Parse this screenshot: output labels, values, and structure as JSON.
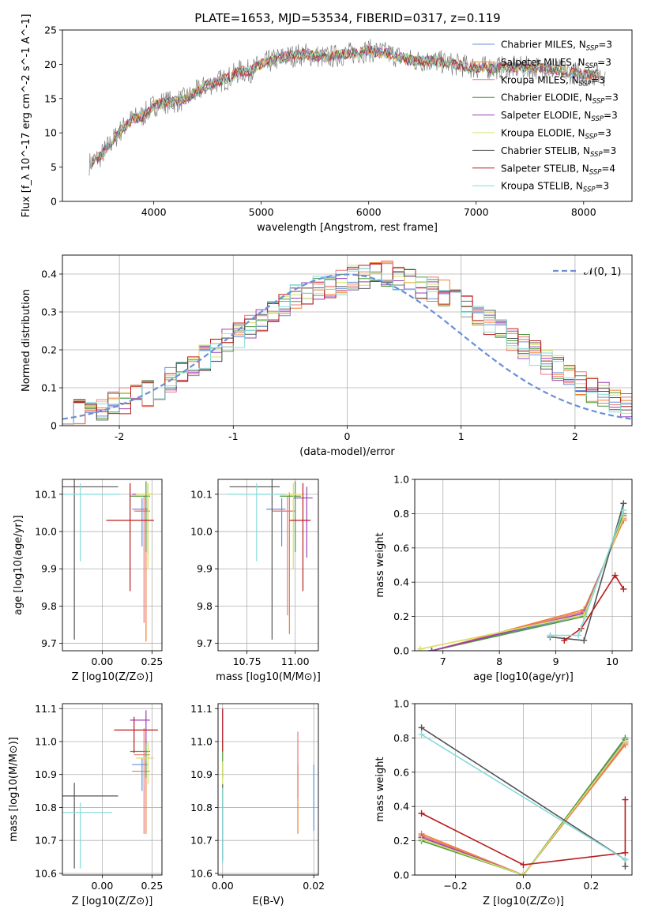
{
  "figure_title": "PLATE=1653, MJD=53534, FIBERID=0317, z=0.119",
  "colors": {
    "Chabrier MILES": "#6a8fd8",
    "Salpeter MILES": "#f07f2f",
    "Kroupa MILES": "#e8787c",
    "Chabrier ELODIE": "#4e9a3a",
    "Salpeter ELODIE": "#9b3fb5",
    "Kroupa ELODIE": "#d8e060",
    "Chabrier STELIB": "#555555",
    "Salpeter STELIB": "#b81d1d",
    "Kroupa STELIB": "#86dada"
  },
  "chart_data": [
    {
      "id": "spectrum",
      "type": "line",
      "title": "PLATE=1653, MJD=53534, FIBERID=0317, z=0.119",
      "xlabel": "wavelength [Angstrom, rest frame]",
      "ylabel": "Flux [f_λ 10^-17 erg cm^-2 s^-1 A^-1]",
      "xlim": [
        3150,
        8450
      ],
      "ylim": [
        0,
        25
      ],
      "xticks": [
        4000,
        5000,
        6000,
        7000,
        8000
      ],
      "yticks": [
        0,
        5,
        10,
        15,
        20,
        25
      ],
      "legend_position": "right",
      "legend": [
        {
          "name": "Chabrier MILES",
          "nssp": "3"
        },
        {
          "name": "Salpeter MILES",
          "nssp": "3"
        },
        {
          "name": "Kroupa MILES",
          "nssp": "3"
        },
        {
          "name": "Chabrier ELODIE",
          "nssp": "3"
        },
        {
          "name": "Salpeter ELODIE",
          "nssp": "3"
        },
        {
          "name": "Kroupa ELODIE",
          "nssp": "3"
        },
        {
          "name": "Chabrier STELIB",
          "nssp": "3"
        },
        {
          "name": "Salpeter STELIB",
          "nssp": "4"
        },
        {
          "name": "Kroupa STELIB",
          "nssp": "3"
        }
      ],
      "continuum": {
        "x": [
          3400,
          3500,
          3600,
          3700,
          3800,
          3900,
          4000,
          4100,
          4200,
          4300,
          4400,
          4500,
          4600,
          4700,
          4800,
          4900,
          5000,
          5200,
          5400,
          5600,
          5800,
          6000,
          6200,
          6400,
          6600,
          6800,
          7000,
          7200,
          7400,
          7600,
          7800,
          8000,
          8200
        ],
        "y": [
          5.5,
          6.5,
          8.5,
          10.5,
          12,
          12.5,
          14,
          14.5,
          14.5,
          15,
          16,
          17,
          17.5,
          18,
          19,
          19,
          20,
          21,
          21.5,
          21,
          21.5,
          22,
          21.5,
          20.5,
          20.5,
          20,
          19.5,
          19.5,
          19.5,
          19.5,
          19,
          18.5,
          18.5
        ]
      }
    },
    {
      "id": "residuals",
      "type": "histogram",
      "xlabel": "(data-model)/error",
      "ylabel": "Normed distribution",
      "xlim": [
        -2.5,
        2.5
      ],
      "ylim": [
        0,
        0.45
      ],
      "xticks": [
        -2,
        -1,
        0,
        1,
        2
      ],
      "yticks": [
        0.0,
        0.1,
        0.2,
        0.3,
        0.4
      ],
      "reference_curve": {
        "name": "𝒩(0, 1)",
        "type": "gaussian",
        "mu": 0,
        "sigma": 1
      },
      "bins_start": -2.5,
      "bin_width": 0.1,
      "base_values": [
        0.03,
        0.035,
        0.04,
        0.045,
        0.055,
        0.065,
        0.075,
        0.085,
        0.1,
        0.12,
        0.14,
        0.16,
        0.18,
        0.2,
        0.22,
        0.24,
        0.26,
        0.28,
        0.3,
        0.32,
        0.34,
        0.35,
        0.36,
        0.37,
        0.38,
        0.39,
        0.39,
        0.4,
        0.4,
        0.39,
        0.38,
        0.37,
        0.36,
        0.35,
        0.33,
        0.31,
        0.29,
        0.27,
        0.25,
        0.23,
        0.21,
        0.19,
        0.17,
        0.15,
        0.13,
        0.11,
        0.095,
        0.08,
        0.065,
        0.055
      ]
    },
    {
      "id": "age-vs-Z",
      "type": "errorbar",
      "xlabel": "Z [log10(Z/Z⊙)]",
      "ylabel": "age [log10(age/yr)]",
      "xlim": [
        -0.2,
        0.3
      ],
      "ylim": [
        9.68,
        10.14
      ],
      "xticks": [
        "0.00",
        "0.25"
      ],
      "yticks": [
        "9.7",
        "9.8",
        "9.9",
        "10.0",
        "10.1"
      ],
      "points": [
        {
          "model": "Chabrier MILES",
          "x": 0.2,
          "y": 10.06,
          "xerr": [
            0.05,
            0.03
          ],
          "yerr": [
            0.1,
            0.03
          ]
        },
        {
          "model": "Salpeter MILES",
          "x": 0.22,
          "y": 10.055,
          "xerr": [
            0.05,
            0.02
          ],
          "yerr": [
            0.35,
            0.05
          ]
        },
        {
          "model": "Kroupa MILES",
          "x": 0.21,
          "y": 10.055,
          "xerr": [
            0.05,
            0.03
          ],
          "yerr": [
            0.3,
            0.04
          ]
        },
        {
          "model": "Chabrier ELODIE",
          "x": 0.22,
          "y": 10.095,
          "xerr": [
            0.08,
            0.02
          ],
          "yerr": [
            0.15,
            0.04
          ]
        },
        {
          "model": "Salpeter ELODIE",
          "x": 0.23,
          "y": 10.1,
          "xerr": [
            0.08,
            0.02
          ],
          "yerr": [
            0.16,
            0.03
          ]
        },
        {
          "model": "Kroupa ELODIE",
          "x": 0.23,
          "y": 10.1,
          "xerr": [
            0.06,
            0.03
          ],
          "yerr": [
            0.2,
            0.03
          ]
        },
        {
          "model": "Chabrier STELIB",
          "x": -0.14,
          "y": 10.12,
          "xerr": [
            0.2,
            0.22
          ],
          "yerr": [
            0.41,
            0.02
          ]
        },
        {
          "model": "Salpeter STELIB",
          "x": 0.14,
          "y": 10.03,
          "xerr": [
            0.12,
            0.12
          ],
          "yerr": [
            0.19,
            0.1
          ]
        },
        {
          "model": "Kroupa STELIB",
          "x": -0.11,
          "y": 10.1,
          "xerr": [
            0.15,
            0.2
          ],
          "yerr": [
            0.18,
            0.03
          ]
        }
      ]
    },
    {
      "id": "age-vs-mass",
      "type": "errorbar",
      "xlabel": "mass [log10(M/M⊙)]",
      "ylabel": "",
      "xlim": [
        10.6,
        11.12
      ],
      "ylim": [
        9.68,
        10.14
      ],
      "xticks": [
        "10.75",
        "11.00"
      ],
      "yticks": [
        "9.7",
        "9.8",
        "9.9",
        "10.0",
        "10.1"
      ],
      "points": [
        {
          "model": "Chabrier MILES",
          "x": 10.93,
          "y": 10.06,
          "xerr": [
            0.08,
            0.02
          ],
          "yerr": [
            0.1,
            0.03
          ]
        },
        {
          "model": "Salpeter MILES",
          "x": 10.97,
          "y": 10.055,
          "xerr": [
            0.08,
            0.03
          ],
          "yerr": [
            0.33,
            0.05
          ]
        },
        {
          "model": "Kroupa MILES",
          "x": 10.96,
          "y": 10.055,
          "xerr": [
            0.08,
            0.03
          ],
          "yerr": [
            0.28,
            0.04
          ]
        },
        {
          "model": "Chabrier ELODIE",
          "x": 11.0,
          "y": 10.095,
          "xerr": [
            0.08,
            0.03
          ],
          "yerr": [
            0.15,
            0.04
          ]
        },
        {
          "model": "Salpeter ELODIE",
          "x": 11.06,
          "y": 10.09,
          "xerr": [
            0.07,
            0.03
          ],
          "yerr": [
            0.16,
            0.03
          ]
        },
        {
          "model": "Kroupa ELODIE",
          "x": 10.99,
          "y": 10.1,
          "xerr": [
            0.08,
            0.05
          ],
          "yerr": [
            0.2,
            0.03
          ]
        },
        {
          "model": "Chabrier STELIB",
          "x": 10.88,
          "y": 10.12,
          "xerr": [
            0.22,
            0.04
          ],
          "yerr": [
            0.41,
            0.02
          ]
        },
        {
          "model": "Salpeter STELIB",
          "x": 11.04,
          "y": 10.03,
          "xerr": [
            0.07,
            0.04
          ],
          "yerr": [
            0.19,
            0.1
          ]
        },
        {
          "model": "Kroupa STELIB",
          "x": 10.8,
          "y": 10.1,
          "xerr": [
            0.15,
            0.15
          ],
          "yerr": [
            0.18,
            0.03
          ]
        }
      ]
    },
    {
      "id": "weight-vs-age",
      "type": "line",
      "xlabel": "age [log10(age/yr)]",
      "ylabel": "mass weight",
      "xlim": [
        6.5,
        10.35
      ],
      "ylim": [
        0,
        1
      ],
      "xticks": [
        "7",
        "8",
        "9",
        "10"
      ],
      "yticks": [
        "0.0",
        "0.2",
        "0.4",
        "0.6",
        "0.8",
        "1.0"
      ],
      "series": [
        {
          "model": "Chabrier MILES",
          "x": [
            6.8,
            9.5,
            10.2
          ],
          "y": [
            0.0,
            0.21,
            0.79
          ]
        },
        {
          "model": "Salpeter MILES",
          "x": [
            6.8,
            9.5,
            10.2
          ],
          "y": [
            0.0,
            0.24,
            0.76
          ]
        },
        {
          "model": "Kroupa MILES",
          "x": [
            6.8,
            9.5,
            10.2
          ],
          "y": [
            0.0,
            0.23,
            0.77
          ]
        },
        {
          "model": "Chabrier ELODIE",
          "x": [
            6.8,
            9.5,
            10.2
          ],
          "y": [
            0.0,
            0.2,
            0.8
          ]
        },
        {
          "model": "Salpeter ELODIE",
          "x": [
            6.8,
            9.5,
            10.2
          ],
          "y": [
            0.0,
            0.22,
            0.78
          ]
        },
        {
          "model": "Kroupa ELODIE",
          "x": [
            6.6,
            9.5,
            10.2
          ],
          "y": [
            0.01,
            0.21,
            0.78
          ]
        },
        {
          "model": "Chabrier STELIB",
          "x": [
            8.9,
            9.5,
            10.2
          ],
          "y": [
            0.08,
            0.06,
            0.86
          ]
        },
        {
          "model": "Salpeter STELIB",
          "x": [
            9.15,
            9.45,
            10.05,
            10.2
          ],
          "y": [
            0.06,
            0.13,
            0.44,
            0.36
          ]
        },
        {
          "model": "Kroupa STELIB",
          "x": [
            8.9,
            9.4,
            10.2
          ],
          "y": [
            0.09,
            0.09,
            0.82
          ]
        }
      ]
    },
    {
      "id": "mass-vs-Z",
      "type": "errorbar",
      "xlabel": "Z [log10(Z/Z⊙)]",
      "ylabel": "mass [log10(M/M⊙)]",
      "xlim": [
        -0.2,
        0.3
      ],
      "ylim": [
        10.595,
        11.115
      ],
      "xticks": [
        "0.00",
        "0.25"
      ],
      "yticks": [
        "10.6",
        "10.7",
        "10.8",
        "10.9",
        "11.0",
        "11.1"
      ],
      "points": [
        {
          "model": "Chabrier MILES",
          "x": 0.2,
          "y": 10.93,
          "xerr": [
            0.05,
            0.03
          ],
          "yerr": [
            0.08,
            0.02
          ]
        },
        {
          "model": "Salpeter MILES",
          "x": 0.22,
          "y": 10.91,
          "xerr": [
            0.07,
            0.02
          ],
          "yerr": [
            0.19,
            0.03
          ]
        },
        {
          "model": "Kroupa MILES",
          "x": 0.21,
          "y": 10.96,
          "xerr": [
            0.05,
            0.03
          ],
          "yerr": [
            0.24,
            0.08
          ]
        },
        {
          "model": "Chabrier ELODIE",
          "x": 0.22,
          "y": 10.97,
          "xerr": [
            0.08,
            0.02
          ],
          "yerr": [
            0.08,
            0.03
          ]
        },
        {
          "model": "Salpeter ELODIE",
          "x": 0.22,
          "y": 11.065,
          "xerr": [
            0.08,
            0.02
          ],
          "yerr": [
            0.07,
            0.03
          ]
        },
        {
          "model": "Kroupa ELODIE",
          "x": 0.23,
          "y": 10.95,
          "xerr": [
            0.06,
            0.03
          ],
          "yerr": [
            0.08,
            0.05
          ]
        },
        {
          "model": "Chabrier STELIB",
          "x": -0.14,
          "y": 10.835,
          "xerr": [
            0.18,
            0.22
          ],
          "yerr": [
            0.22,
            0.04
          ]
        },
        {
          "model": "Salpeter STELIB",
          "x": 0.16,
          "y": 11.035,
          "xerr": [
            0.1,
            0.12
          ],
          "yerr": [
            0.07,
            0.04
          ]
        },
        {
          "model": "Kroupa STELIB",
          "x": -0.11,
          "y": 10.785,
          "xerr": [
            0.1,
            0.16
          ],
          "yerr": [
            0.17,
            0.03
          ]
        }
      ]
    },
    {
      "id": "mass-vs-EBV",
      "type": "errorbar",
      "xlabel": "E(B-V)",
      "ylabel": "",
      "xlim": [
        -0.001,
        0.021
      ],
      "ylim": [
        10.595,
        11.115
      ],
      "xticks": [
        "0.00",
        "0.02"
      ],
      "yticks": [
        "10.6",
        "10.7",
        "10.8",
        "10.9",
        "11.0",
        "11.1"
      ],
      "points": [
        {
          "model": "Chabrier MILES",
          "x": 0.02,
          "y": 10.83,
          "xerr": [
            0,
            0
          ],
          "yerr": [
            0.1,
            0.1
          ]
        },
        {
          "model": "Salpeter MILES",
          "x": 0.0165,
          "y": 10.83,
          "xerr": [
            0,
            0
          ],
          "yerr": [
            0.11,
            0.1
          ]
        },
        {
          "model": "Kroupa MILES",
          "x": 0.0165,
          "y": 10.93,
          "xerr": [
            0,
            0
          ],
          "yerr": [
            0.1,
            0.1
          ]
        },
        {
          "model": "Chabrier ELODIE",
          "x": 0.0,
          "y": 10.97,
          "xerr": [
            0,
            0
          ],
          "yerr": [
            0.08,
            0.03
          ]
        },
        {
          "model": "Salpeter ELODIE",
          "x": 0.0,
          "y": 11.06,
          "xerr": [
            0,
            0
          ],
          "yerr": [
            0.06,
            0.04
          ]
        },
        {
          "model": "Kroupa ELODIE",
          "x": 0.0,
          "y": 10.9,
          "xerr": [
            0,
            0
          ],
          "yerr": [
            0.1,
            0.04
          ]
        },
        {
          "model": "Chabrier STELIB",
          "x": 0.0,
          "y": 10.84,
          "xerr": [
            0,
            0
          ],
          "yerr": [
            0.2,
            0.03
          ]
        },
        {
          "model": "Salpeter STELIB",
          "x": 0.0,
          "y": 11.05,
          "xerr": [
            0,
            0
          ],
          "yerr": [
            0.08,
            0.05
          ]
        },
        {
          "model": "Kroupa STELIB",
          "x": 0.0,
          "y": 10.78,
          "xerr": [
            0,
            0
          ],
          "yerr": [
            0.15,
            0.08
          ]
        }
      ]
    },
    {
      "id": "weight-vs-Z",
      "type": "line",
      "xlabel": "Z [log10(Z/Z⊙)]",
      "ylabel": "mass weight",
      "xlim": [
        -0.32,
        0.32
      ],
      "ylim": [
        0,
        1
      ],
      "xticks": [
        "−0.2",
        "0.0",
        "0.2"
      ],
      "yticks": [
        "0.0",
        "0.2",
        "0.4",
        "0.6",
        "0.8",
        "1.0"
      ],
      "series": [
        {
          "model": "Chabrier MILES",
          "x": [
            -0.3,
            0.0,
            0.3
          ],
          "y": [
            0.21,
            0.0,
            0.79
          ]
        },
        {
          "model": "Salpeter MILES",
          "x": [
            -0.3,
            0.0,
            0.3
          ],
          "y": [
            0.24,
            0.0,
            0.76
          ]
        },
        {
          "model": "Kroupa MILES",
          "x": [
            -0.3,
            0.0,
            0.3
          ],
          "y": [
            0.23,
            0.0,
            0.77
          ]
        },
        {
          "model": "Chabrier ELODIE",
          "x": [
            -0.3,
            0.0,
            0.3
          ],
          "y": [
            0.2,
            0.0,
            0.8
          ]
        },
        {
          "model": "Salpeter ELODIE",
          "x": [
            -0.3,
            0.0,
            0.3
          ],
          "y": [
            0.22,
            0.0,
            0.78
          ]
        },
        {
          "model": "Kroupa ELODIE",
          "x": [
            -0.3,
            0.0,
            0.3
          ],
          "y": [
            0.21,
            0.0,
            0.78
          ]
        },
        {
          "model": "Chabrier STELIB",
          "x": [
            -0.3,
            0.3,
            0.3
          ],
          "y": [
            0.86,
            0.09,
            0.05
          ]
        },
        {
          "model": "Salpeter STELIB",
          "x": [
            -0.3,
            0.0,
            0.3,
            0.3
          ],
          "y": [
            0.36,
            0.06,
            0.13,
            0.44
          ]
        },
        {
          "model": "Kroupa STELIB",
          "x": [
            -0.3,
            0.3
          ],
          "y": [
            0.82,
            0.09
          ]
        }
      ]
    }
  ]
}
